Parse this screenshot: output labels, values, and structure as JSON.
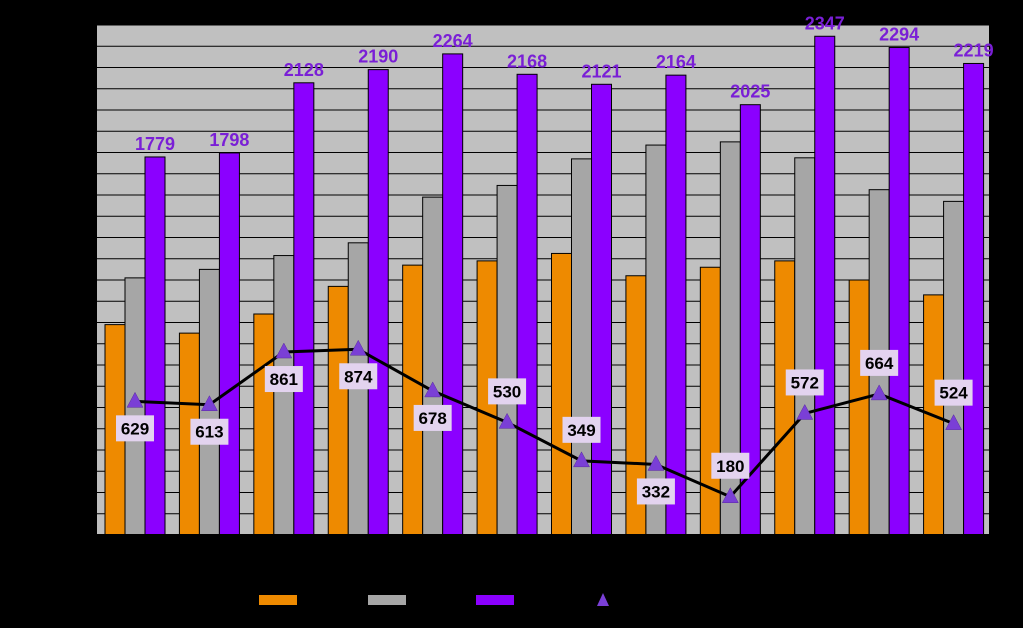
{
  "chart_data": {
    "type": "bar",
    "categories": [
      "",
      "",
      "",
      "",
      "",
      "",
      "",
      "",
      "",
      "",
      "",
      ""
    ],
    "series": [
      {
        "type": "bar",
        "color": "#ee8a00",
        "values": [
          990,
          950,
          1040,
          1170,
          1270,
          1290,
          1325,
          1220,
          1260,
          1290,
          1200,
          1130
        ]
      },
      {
        "type": "bar",
        "color": "#a6a6a6",
        "values": [
          1210,
          1250,
          1315,
          1375,
          1590,
          1645,
          1770,
          1835,
          1850,
          1775,
          1625,
          1570
        ]
      },
      {
        "type": "bar",
        "color": "#8b00ff",
        "values": [
          1779,
          1798,
          2128,
          2190,
          2264,
          2168,
          2121,
          2164,
          2025,
          2347,
          2294,
          2219
        ]
      },
      {
        "type": "line",
        "color": "#000000",
        "marker": "triangle",
        "marker_color": "#7a3fd6",
        "values": [
          629,
          613,
          861,
          874,
          678,
          530,
          349,
          332,
          180,
          572,
          664,
          524
        ]
      }
    ],
    "ylim": [
      0,
      2400
    ],
    "y_gridline_step": 100,
    "grid": true,
    "legend_placement": "bottom",
    "colors": {
      "background": "#000000",
      "plot_area": "#c0c0c0",
      "gridline": "#000000",
      "label_box": "#e3d3ef",
      "purple_label": "#7a1fd6"
    }
  }
}
